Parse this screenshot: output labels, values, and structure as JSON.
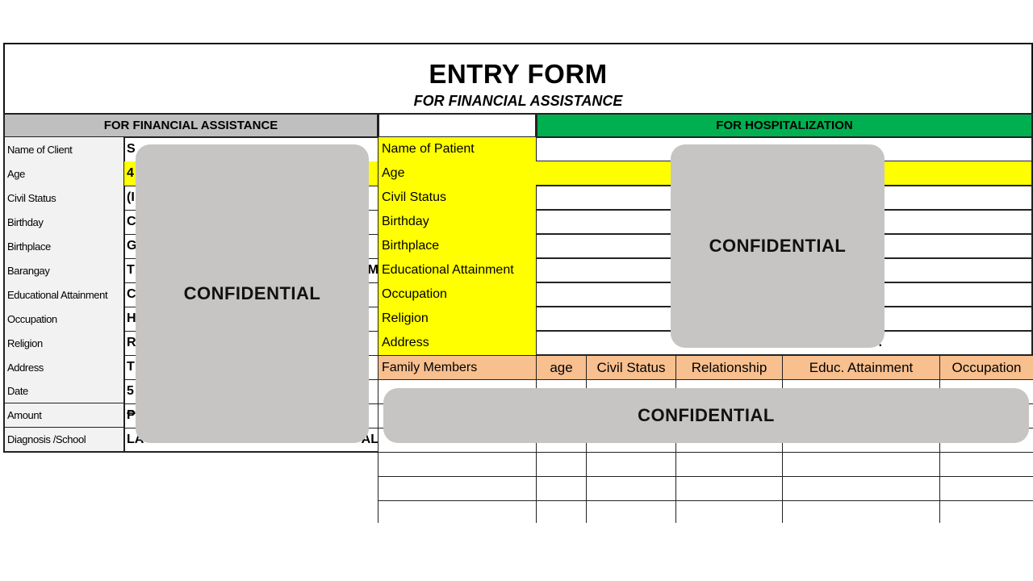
{
  "header": {
    "title": "ENTRY FORM",
    "subtitle": "FOR FINANCIAL ASSISTANCE"
  },
  "financial": {
    "heading": "FOR FINANCIAL ASSISTANCE",
    "rows": [
      {
        "label": "Name of Client",
        "value": "S"
      },
      {
        "label": "Age",
        "value": "4"
      },
      {
        "label": "Civil Status",
        "value": "(I"
      },
      {
        "label": "Birthday",
        "value": "C"
      },
      {
        "label": "Birthplace",
        "value": "G"
      },
      {
        "label": "Barangay",
        "value": "T",
        "value_end": "M"
      },
      {
        "label": "Educational Attainment",
        "value": "C"
      },
      {
        "label": "Occupation",
        "value": "H"
      },
      {
        "label": "Religion",
        "value": "R"
      },
      {
        "label": "Address",
        "value": "T"
      },
      {
        "label": "Date",
        "value": "5"
      },
      {
        "label": "Amount",
        "value": "₱"
      },
      {
        "label": "Diagnosis /School",
        "value": "LA",
        "value_end": "AL"
      }
    ]
  },
  "hospitalization": {
    "heading": "FOR HOSPITALIZATION",
    "rows": [
      {
        "label": "Name of Patient"
      },
      {
        "label": "Age"
      },
      {
        "label": "Civil Status"
      },
      {
        "label": "Birthday"
      },
      {
        "label": "Birthplace"
      },
      {
        "label": "Educational Attainment"
      },
      {
        "label": "Occupation"
      },
      {
        "label": "Religion"
      },
      {
        "label": "Address",
        "value_end": "o."
      }
    ],
    "family": {
      "columns": [
        "Family Members",
        "age",
        "Civil Status",
        "Relationship",
        "Educ. Attainment",
        "Occupation"
      ]
    }
  },
  "redactions": {
    "label": "CONFIDENTIAL",
    "color": "#c6c5c3"
  },
  "colors": {
    "yellow": "#ffff00",
    "green": "#00b050",
    "peach": "#f8bf8f",
    "gray_header": "#bfbfbf"
  }
}
